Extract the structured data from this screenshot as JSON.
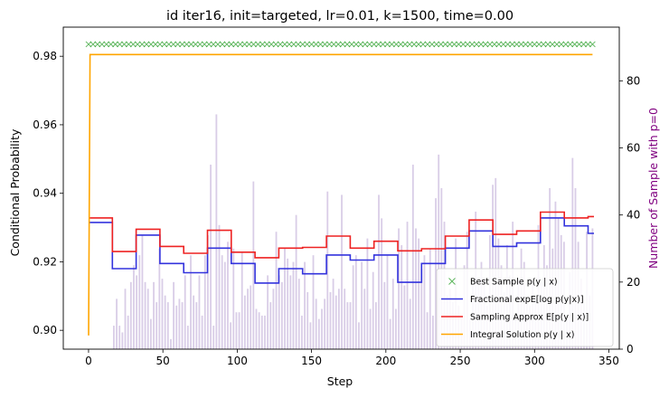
{
  "chart_data": {
    "type": "line",
    "title": "id iter16, init=targeted, lr=0.01, k=1500, time=0.00",
    "xlabel": "Step",
    "ylabel": "Conditional Probability",
    "y2label": "Number of Sample with p=0",
    "xlim": [
      -17,
      357
    ],
    "ylim": [
      0.8945,
      0.9885
    ],
    "y2lim": [
      0,
      96
    ],
    "xticks": [
      0,
      50,
      100,
      150,
      200,
      250,
      300,
      350
    ],
    "yticks": [
      0.9,
      0.92,
      0.94,
      0.96,
      0.98
    ],
    "y2ticks": [
      0,
      20,
      40,
      60,
      80
    ],
    "colors": {
      "best": "#2ca02c",
      "fractional": "#3333dd",
      "sampling": "#ee2222",
      "integral": "#ffa500",
      "bars": "#9b7bc0",
      "y2label": "#800080"
    },
    "legend": {
      "placement": "lower-right",
      "entries": [
        "Best Sample $p(y \\mid x)$",
        "Fractional $\\exp\\mathbb{E}[\\log p(y|x)]$",
        "Sampling Approx $E[p(y \\mid x)]$",
        "Integral Solution $p(y \\mid x)$"
      ]
    },
    "series": [
      {
        "name": "Best Sample $p(y \\mid x)$",
        "marker": "x",
        "x_range": [
          0,
          339,
          3
        ],
        "value": 0.9835
      },
      {
        "name": "Fractional $\\exp\\mathbb{E}[\\log p(y|x)]$",
        "step_segments": [
          [
            0,
            16,
            0.9315
          ],
          [
            16,
            32,
            0.918
          ],
          [
            32,
            48,
            0.9278
          ],
          [
            48,
            64,
            0.9195
          ],
          [
            64,
            80,
            0.9168
          ],
          [
            80,
            96,
            0.924
          ],
          [
            96,
            112,
            0.9195
          ],
          [
            112,
            128,
            0.9138
          ],
          [
            128,
            144,
            0.918
          ],
          [
            144,
            160,
            0.9165
          ],
          [
            160,
            176,
            0.922
          ],
          [
            176,
            192,
            0.9205
          ],
          [
            192,
            208,
            0.922
          ],
          [
            208,
            224,
            0.914
          ],
          [
            224,
            240,
            0.9195
          ],
          [
            240,
            256,
            0.924
          ],
          [
            256,
            272,
            0.929
          ],
          [
            272,
            288,
            0.9245
          ],
          [
            288,
            304,
            0.9255
          ],
          [
            304,
            320,
            0.9328
          ],
          [
            320,
            336,
            0.9305
          ],
          [
            336,
            340,
            0.9283
          ]
        ]
      },
      {
        "name": "Sampling Approx $E[p(y \\mid x)]$",
        "step_segments": [
          [
            0,
            16,
            0.9328
          ],
          [
            16,
            32,
            0.923
          ],
          [
            32,
            48,
            0.9295
          ],
          [
            48,
            64,
            0.9245
          ],
          [
            64,
            80,
            0.9225
          ],
          [
            80,
            96,
            0.9292
          ],
          [
            96,
            112,
            0.9228
          ],
          [
            112,
            128,
            0.9212
          ],
          [
            128,
            144,
            0.924
          ],
          [
            144,
            160,
            0.9242
          ],
          [
            160,
            176,
            0.9275
          ],
          [
            176,
            192,
            0.924
          ],
          [
            192,
            208,
            0.926
          ],
          [
            208,
            224,
            0.9232
          ],
          [
            224,
            240,
            0.9238
          ],
          [
            240,
            256,
            0.9275
          ],
          [
            256,
            272,
            0.9322
          ],
          [
            272,
            288,
            0.928
          ],
          [
            288,
            304,
            0.929
          ],
          [
            304,
            320,
            0.9345
          ],
          [
            320,
            336,
            0.9328
          ],
          [
            336,
            340,
            0.9332
          ]
        ]
      },
      {
        "name": "Integral Solution $p(y \\mid x)$",
        "x": [
          0,
          1,
          339
        ],
        "y": [
          0.8985,
          0.9805,
          0.9805
        ]
      }
    ],
    "bars": {
      "axis": "y2",
      "x_range": [
        17,
        339
      ],
      "values": [
        7,
        15,
        7,
        5,
        18,
        10,
        20,
        25,
        22,
        28,
        34,
        20,
        18,
        9,
        20,
        14,
        30,
        21,
        16,
        14,
        3,
        20,
        13,
        15,
        14,
        22,
        7,
        28,
        16,
        14,
        22,
        10,
        28,
        34,
        55,
        7,
        70,
        37,
        28,
        26,
        32,
        8,
        30,
        11,
        11,
        29,
        16,
        18,
        19,
        50,
        12,
        11,
        10,
        10,
        22,
        14,
        18,
        35,
        22,
        20,
        30,
        27,
        22,
        26,
        40,
        21,
        10,
        26,
        17,
        8,
        28,
        15,
        9,
        12,
        15,
        47,
        17,
        21,
        16,
        18,
        46,
        18,
        14,
        14,
        25,
        28,
        8,
        26,
        18,
        33,
        12,
        23,
        14,
        46,
        39,
        20,
        28,
        9,
        21,
        12,
        36,
        31,
        19,
        38,
        15,
        55,
        36,
        33,
        24,
        28,
        11,
        30,
        10,
        45,
        58,
        48,
        38,
        16,
        18,
        14,
        33,
        13,
        9,
        25,
        35,
        9,
        19,
        41,
        20,
        26,
        21,
        13,
        34,
        49,
        51,
        33,
        25,
        17,
        31,
        22,
        38,
        10,
        21,
        30,
        26,
        15,
        13,
        21,
        15,
        37,
        20,
        31,
        25,
        48,
        30,
        44,
        39,
        34,
        32,
        9,
        23,
        57,
        48,
        32,
        21,
        15,
        35,
        16,
        36
      ]
    }
  }
}
